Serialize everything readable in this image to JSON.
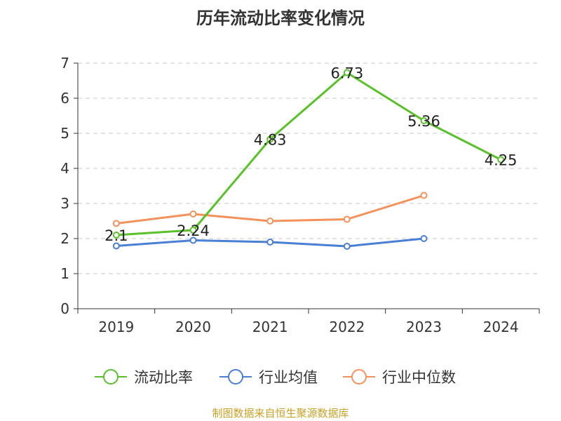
{
  "chart_data": {
    "type": "line",
    "title": "历年流动比率变化情况",
    "categories": [
      "2019",
      "2020",
      "2021",
      "2022",
      "2023",
      "2024"
    ],
    "y_ticks": [
      "0",
      "1",
      "2",
      "3",
      "4",
      "5",
      "6",
      "7"
    ],
    "ylim": [
      0,
      7
    ],
    "grid": true,
    "legend_position": "bottom",
    "series": [
      {
        "name": "流动比率",
        "color": "#5ac12a",
        "values": [
          2.1,
          2.24,
          4.83,
          6.73,
          5.36,
          4.25
        ],
        "labels": [
          "2.1",
          "2.24",
          "4.83",
          "6.73",
          "5.36",
          "4.25"
        ]
      },
      {
        "name": "行业均值",
        "color": "#4a7fd6",
        "values": [
          1.79,
          1.95,
          1.9,
          1.78,
          2.0,
          null
        ]
      },
      {
        "name": "行业中位数",
        "color": "#f5915a",
        "values": [
          2.43,
          2.7,
          2.5,
          2.55,
          3.23,
          null
        ]
      }
    ],
    "source": "制图数据来自恒生聚源数据库"
  }
}
